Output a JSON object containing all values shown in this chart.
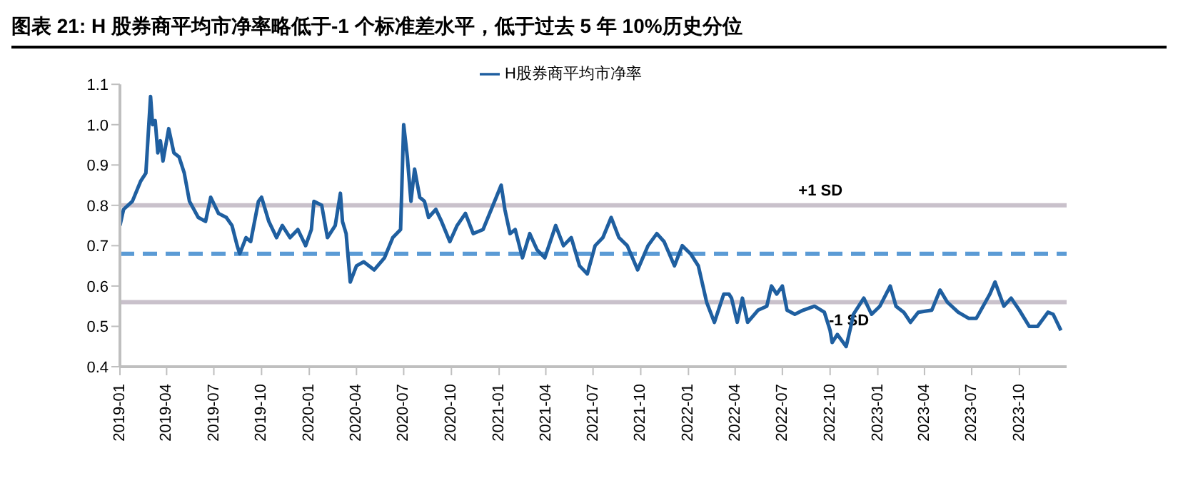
{
  "chart_data": {
    "type": "line",
    "title": "图表 21: H 股券商平均市净率略低于-1 个标准差水平，低于过去 5 年 10%历史分位",
    "x": [
      "2019-01-01",
      "2019-01-08",
      "2019-01-25",
      "2019-02-10",
      "2019-02-20",
      "2019-03-01",
      "2019-03-05",
      "2019-03-10",
      "2019-03-15",
      "2019-03-20",
      "2019-03-25",
      "2019-04-05",
      "2019-04-15",
      "2019-04-25",
      "2019-05-05",
      "2019-05-15",
      "2019-06-01",
      "2019-06-15",
      "2019-06-25",
      "2019-07-10",
      "2019-07-25",
      "2019-08-05",
      "2019-08-15",
      "2019-08-20",
      "2019-09-01",
      "2019-09-10",
      "2019-09-25",
      "2019-10-01",
      "2019-10-15",
      "2019-10-30",
      "2019-11-10",
      "2019-11-25",
      "2019-12-10",
      "2019-12-25",
      "2020-01-05",
      "2020-01-10",
      "2020-01-25",
      "2020-02-05",
      "2020-02-20",
      "2020-03-01",
      "2020-03-05",
      "2020-03-12",
      "2020-03-20",
      "2020-04-01",
      "2020-04-15",
      "2020-05-05",
      "2020-05-25",
      "2020-06-10",
      "2020-06-25",
      "2020-07-01",
      "2020-07-08",
      "2020-07-15",
      "2020-07-22",
      "2020-08-01",
      "2020-08-10",
      "2020-08-18",
      "2020-09-01",
      "2020-09-12",
      "2020-09-28",
      "2020-10-12",
      "2020-10-28",
      "2020-11-12",
      "2020-12-01",
      "2021-01-05",
      "2021-01-12",
      "2021-01-22",
      "2021-02-01",
      "2021-02-15",
      "2021-03-01",
      "2021-03-15",
      "2021-03-30",
      "2021-04-20",
      "2021-05-05",
      "2021-05-20",
      "2021-06-05",
      "2021-06-20",
      "2021-07-05",
      "2021-07-20",
      "2021-08-05",
      "2021-08-20",
      "2021-09-05",
      "2021-09-25",
      "2021-10-15",
      "2021-11-01",
      "2021-11-15",
      "2021-12-05",
      "2021-12-20",
      "2022-01-05",
      "2022-01-20",
      "2022-02-05",
      "2022-02-20",
      "2022-03-10",
      "2022-03-20",
      "2022-03-25",
      "2022-04-05",
      "2022-04-15",
      "2022-04-25",
      "2022-05-15",
      "2022-06-01",
      "2022-06-10",
      "2022-06-20",
      "2022-07-01",
      "2022-07-10",
      "2022-07-25",
      "2022-08-10",
      "2022-09-01",
      "2022-09-20",
      "2022-10-01",
      "2022-10-05",
      "2022-10-15",
      "2022-11-01",
      "2022-11-10",
      "2022-11-15",
      "2022-12-05",
      "2022-12-20",
      "2023-01-05",
      "2023-01-25",
      "2023-02-05",
      "2023-02-20",
      "2023-03-05",
      "2023-03-20",
      "2023-04-15",
      "2023-05-01",
      "2023-05-15",
      "2023-06-05",
      "2023-06-25",
      "2023-07-10",
      "2023-08-05",
      "2023-08-15",
      "2023-09-01",
      "2023-09-15",
      "2023-10-01",
      "2023-10-20",
      "2023-11-05",
      "2023-11-25",
      "2023-12-05",
      "2023-12-20"
    ],
    "series": [
      {
        "name": "H股券商平均市净率",
        "color": "#1f5fa0",
        "values": [
          0.75,
          0.79,
          0.81,
          0.86,
          0.88,
          1.07,
          1.0,
          1.01,
          0.93,
          0.96,
          0.91,
          0.99,
          0.93,
          0.92,
          0.88,
          0.81,
          0.77,
          0.76,
          0.82,
          0.78,
          0.77,
          0.75,
          0.7,
          0.68,
          0.72,
          0.71,
          0.81,
          0.82,
          0.76,
          0.72,
          0.75,
          0.72,
          0.74,
          0.7,
          0.74,
          0.81,
          0.8,
          0.72,
          0.75,
          0.83,
          0.76,
          0.73,
          0.61,
          0.65,
          0.66,
          0.64,
          0.67,
          0.72,
          0.74,
          1.0,
          0.92,
          0.81,
          0.89,
          0.82,
          0.81,
          0.77,
          0.79,
          0.76,
          0.71,
          0.75,
          0.78,
          0.73,
          0.74,
          0.85,
          0.79,
          0.73,
          0.74,
          0.67,
          0.73,
          0.69,
          0.67,
          0.75,
          0.7,
          0.72,
          0.65,
          0.63,
          0.7,
          0.72,
          0.77,
          0.72,
          0.7,
          0.64,
          0.7,
          0.73,
          0.71,
          0.65,
          0.7,
          0.68,
          0.65,
          0.56,
          0.51,
          0.58,
          0.58,
          0.57,
          0.51,
          0.57,
          0.51,
          0.54,
          0.55,
          0.6,
          0.58,
          0.6,
          0.54,
          0.53,
          0.54,
          0.55,
          0.535,
          0.49,
          0.46,
          0.48,
          0.45,
          0.5,
          0.53,
          0.57,
          0.53,
          0.55,
          0.6,
          0.55,
          0.535,
          0.51,
          0.535,
          0.54,
          0.59,
          0.56,
          0.535,
          0.52,
          0.52,
          0.58,
          0.61,
          0.55,
          0.57,
          0.54,
          0.5,
          0.5,
          0.535,
          0.53,
          0.49
        ]
      }
    ],
    "xlim": [
      "2019-01-01",
      "2023-12-31"
    ],
    "xticks": [
      "2019-01",
      "2019-04",
      "2019-07",
      "2019-10",
      "2020-01",
      "2020-04",
      "2020-07",
      "2020-10",
      "2021-01",
      "2021-04",
      "2021-07",
      "2021-10",
      "2022-01",
      "2022-04",
      "2022-07",
      "2022-10",
      "2023-01",
      "2023-04",
      "2023-07",
      "2023-10"
    ],
    "ylim": [
      0.4,
      1.1
    ],
    "yticks": [
      0.4,
      0.5,
      0.6,
      0.7,
      0.8,
      0.9,
      {
        "value": 1,
        "label": "1.0"
      },
      1.1
    ],
    "ref_lines": [
      {
        "axis": "y",
        "value": 0.8,
        "label": "+1 SD",
        "color": "#c9c1cb",
        "line_style": "solid"
      },
      {
        "axis": "y",
        "value": 0.68,
        "label": null,
        "color": "#5b9bd5",
        "line_style": "dashed"
      },
      {
        "axis": "y",
        "value": 0.56,
        "label": "-1 SD",
        "color": "#c9c1cb",
        "line_style": "solid"
      }
    ],
    "grid": false,
    "legend": "top",
    "marker": "none",
    "line_style": "solid"
  }
}
